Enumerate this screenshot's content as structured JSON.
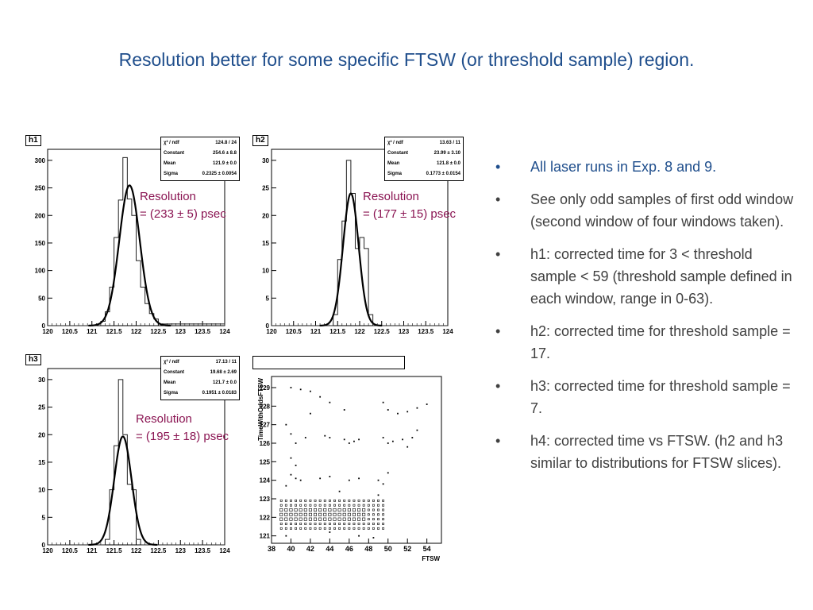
{
  "title": "Resolution better for some specific FTSW (or threshold sample) region.",
  "bullets": [
    "All laser runs in Exp. 8 and 9.",
    "See only odd samples of first odd window (second window of four windows taken).",
    "h1: corrected time for 3 < threshold sample < 59 (threshold sample defined in each window, range in 0-63).",
    "h2: corrected time for threshold sample = 17.",
    "h3: corrected time for threshold sample = 7.",
    "h4: corrected time vs FTSW. (h2 and h3 similar to distributions for FTSW slices)."
  ],
  "colors": {
    "title": "#1f4e8c",
    "annotation": "#8a1452",
    "body_text": "#404040"
  },
  "stats_labels": {
    "chi2": "χ² / ndf",
    "constant": "Constant",
    "mean": "Mean",
    "sigma": "Sigma"
  },
  "chart_data": [
    {
      "type": "histogram",
      "name": "h1",
      "xlim": [
        120,
        124
      ],
      "ylim": [
        0,
        320
      ],
      "x_ticks": [
        "120",
        "120.5",
        "121",
        "121.5",
        "122",
        "122.5",
        "123",
        "123.5",
        "124"
      ],
      "y_ticks": [
        0,
        50,
        100,
        150,
        200,
        250,
        300
      ],
      "bin_edges": [
        120,
        121.1,
        121.2,
        121.3,
        121.4,
        121.5,
        121.6,
        121.7,
        121.8,
        121.9,
        122,
        122.1,
        122.2,
        122.3,
        122.4,
        122.5,
        124
      ],
      "counts": [
        0,
        3,
        8,
        25,
        70,
        160,
        228,
        305,
        230,
        200,
        118,
        70,
        40,
        22,
        12,
        3
      ],
      "fit": {
        "constant": 254.6,
        "mean": 121.85,
        "sigma": 0.2325
      },
      "stats": {
        "chi2": "124.8 / 24",
        "constant": "254.6 ± 8.8",
        "mean": "121.9 ± 0.0",
        "sigma": "0.2325 ± 0.0054"
      },
      "annotation": [
        "Resolution",
        "= (233 ± 5) psec"
      ]
    },
    {
      "type": "histogram",
      "name": "h2",
      "xlim": [
        120,
        124
      ],
      "ylim": [
        0,
        32
      ],
      "x_ticks": [
        "120",
        "120.5",
        "121",
        "121.5",
        "122",
        "122.5",
        "123",
        "123.5",
        "124"
      ],
      "y_ticks": [
        0,
        5,
        10,
        15,
        20,
        25,
        30
      ],
      "bin_edges": [
        120,
        121.4,
        121.5,
        121.6,
        121.7,
        121.8,
        121.9,
        122,
        122.1,
        122.2,
        122.3,
        124
      ],
      "counts": [
        0,
        2,
        12,
        19,
        30,
        24,
        14,
        16,
        14,
        2,
        0
      ],
      "fit": {
        "constant": 23.99,
        "mean": 121.8,
        "sigma": 0.1773
      },
      "stats": {
        "chi2": "13.63 / 11",
        "constant": "23.99 ± 3.10",
        "mean": "121.8 ± 0.0",
        "sigma": "0.1773 ± 0.0154"
      },
      "annotation": [
        "Resolution",
        "= (177 ± 15) psec"
      ]
    },
    {
      "type": "histogram",
      "name": "h3",
      "xlim": [
        120,
        124
      ],
      "ylim": [
        0,
        32
      ],
      "x_ticks": [
        "120",
        "120.5",
        "121",
        "121.5",
        "122",
        "122.5",
        "123",
        "123.5",
        "124"
      ],
      "y_ticks": [
        0,
        5,
        10,
        15,
        20,
        25,
        30
      ],
      "bin_edges": [
        120,
        121.3,
        121.4,
        121.5,
        121.6,
        121.7,
        121.8,
        121.9,
        122,
        122.1,
        124
      ],
      "counts": [
        0,
        1,
        10,
        18,
        30,
        20,
        11,
        10,
        1,
        0
      ],
      "fit": {
        "constant": 19.68,
        "mean": 121.7,
        "sigma": 0.1951
      },
      "stats": {
        "chi2": "17.13 / 11",
        "constant": "19.68 ± 2.69",
        "mean": "121.7 ± 0.0",
        "sigma": "0.1951 ± 0.0183"
      },
      "annotation": [
        "Resolution",
        "= (195 ± 18) psec"
      ]
    },
    {
      "type": "scatter",
      "name": "h4",
      "xlabel": "FTSW",
      "ylabel": "TimeWithOddsFTSW",
      "xlim": [
        38,
        55.5
      ],
      "ylim": [
        120.6,
        129.6
      ],
      "x_ticks": [
        38,
        40,
        42,
        44,
        46,
        48,
        50,
        52,
        54
      ],
      "y_ticks": [
        121,
        122,
        123,
        124,
        125,
        126,
        127,
        128,
        129
      ],
      "dense_band": {
        "x": [
          39,
          49.5
        ],
        "y": [
          121.4,
          122.9
        ]
      },
      "points": [
        [
          40,
          129
        ],
        [
          41,
          128.9
        ],
        [
          42,
          128.8
        ],
        [
          43,
          128.5
        ],
        [
          44,
          128.2
        ],
        [
          45.5,
          127.8
        ],
        [
          49.5,
          128.2
        ],
        [
          50,
          127.8
        ],
        [
          51,
          127.6
        ],
        [
          52,
          127.7
        ],
        [
          53,
          127.9
        ],
        [
          54,
          128.1
        ],
        [
          42,
          127.6
        ],
        [
          39.5,
          127
        ],
        [
          40,
          126.5
        ],
        [
          40.5,
          126
        ],
        [
          41.5,
          126.3
        ],
        [
          43.5,
          126.4
        ],
        [
          44,
          126.3
        ],
        [
          45.5,
          126.2
        ],
        [
          46,
          126
        ],
        [
          46.5,
          126.1
        ],
        [
          47,
          126.2
        ],
        [
          49.5,
          126.3
        ],
        [
          50,
          126
        ],
        [
          50.5,
          126.1
        ],
        [
          51.5,
          126.2
        ],
        [
          52,
          125.8
        ],
        [
          52.5,
          126.3
        ],
        [
          53,
          126.7
        ],
        [
          40,
          125.2
        ],
        [
          40.5,
          124.8
        ],
        [
          40,
          124.3
        ],
        [
          40.5,
          124.1
        ],
        [
          41,
          124
        ],
        [
          43,
          124.1
        ],
        [
          44,
          124.2
        ],
        [
          46,
          124
        ],
        [
          47,
          124.1
        ],
        [
          49,
          124
        ],
        [
          49.5,
          123.8
        ],
        [
          50,
          124.4
        ],
        [
          39.5,
          123.7
        ],
        [
          45,
          123.4
        ],
        [
          49,
          123.2
        ],
        [
          39.5,
          121
        ],
        [
          44,
          121.2
        ],
        [
          47,
          121
        ],
        [
          48.5,
          120.9
        ]
      ]
    }
  ]
}
